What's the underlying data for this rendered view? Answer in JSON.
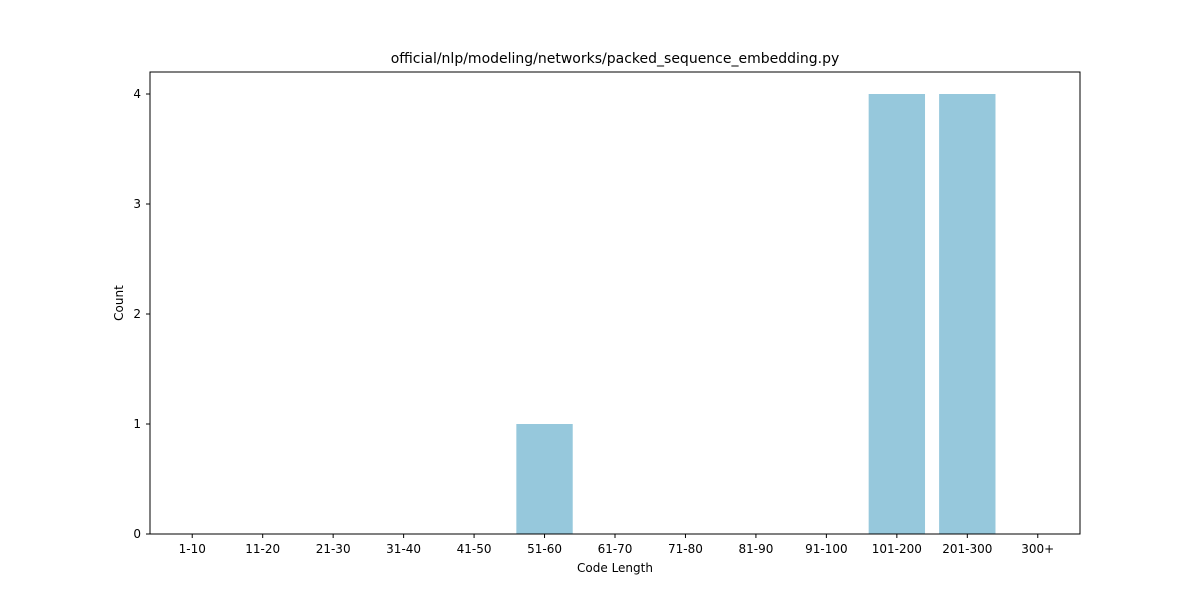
{
  "chart_data": {
    "type": "bar",
    "title": "official/nlp/modeling/networks/packed_sequence_embedding.py",
    "xlabel": "Code Length",
    "ylabel": "Count",
    "categories": [
      "1-10",
      "11-20",
      "21-30",
      "31-40",
      "41-50",
      "51-60",
      "61-70",
      "71-80",
      "81-90",
      "91-100",
      "101-200",
      "201-300",
      "300+"
    ],
    "values": [
      0,
      0,
      0,
      0,
      0,
      1,
      0,
      0,
      0,
      0,
      4,
      4,
      0
    ],
    "ylim": [
      0,
      4.2
    ],
    "yticks": [
      0,
      1,
      2,
      3,
      4
    ],
    "bar_color": "#96c8dc",
    "grid": false,
    "legend": false
  }
}
